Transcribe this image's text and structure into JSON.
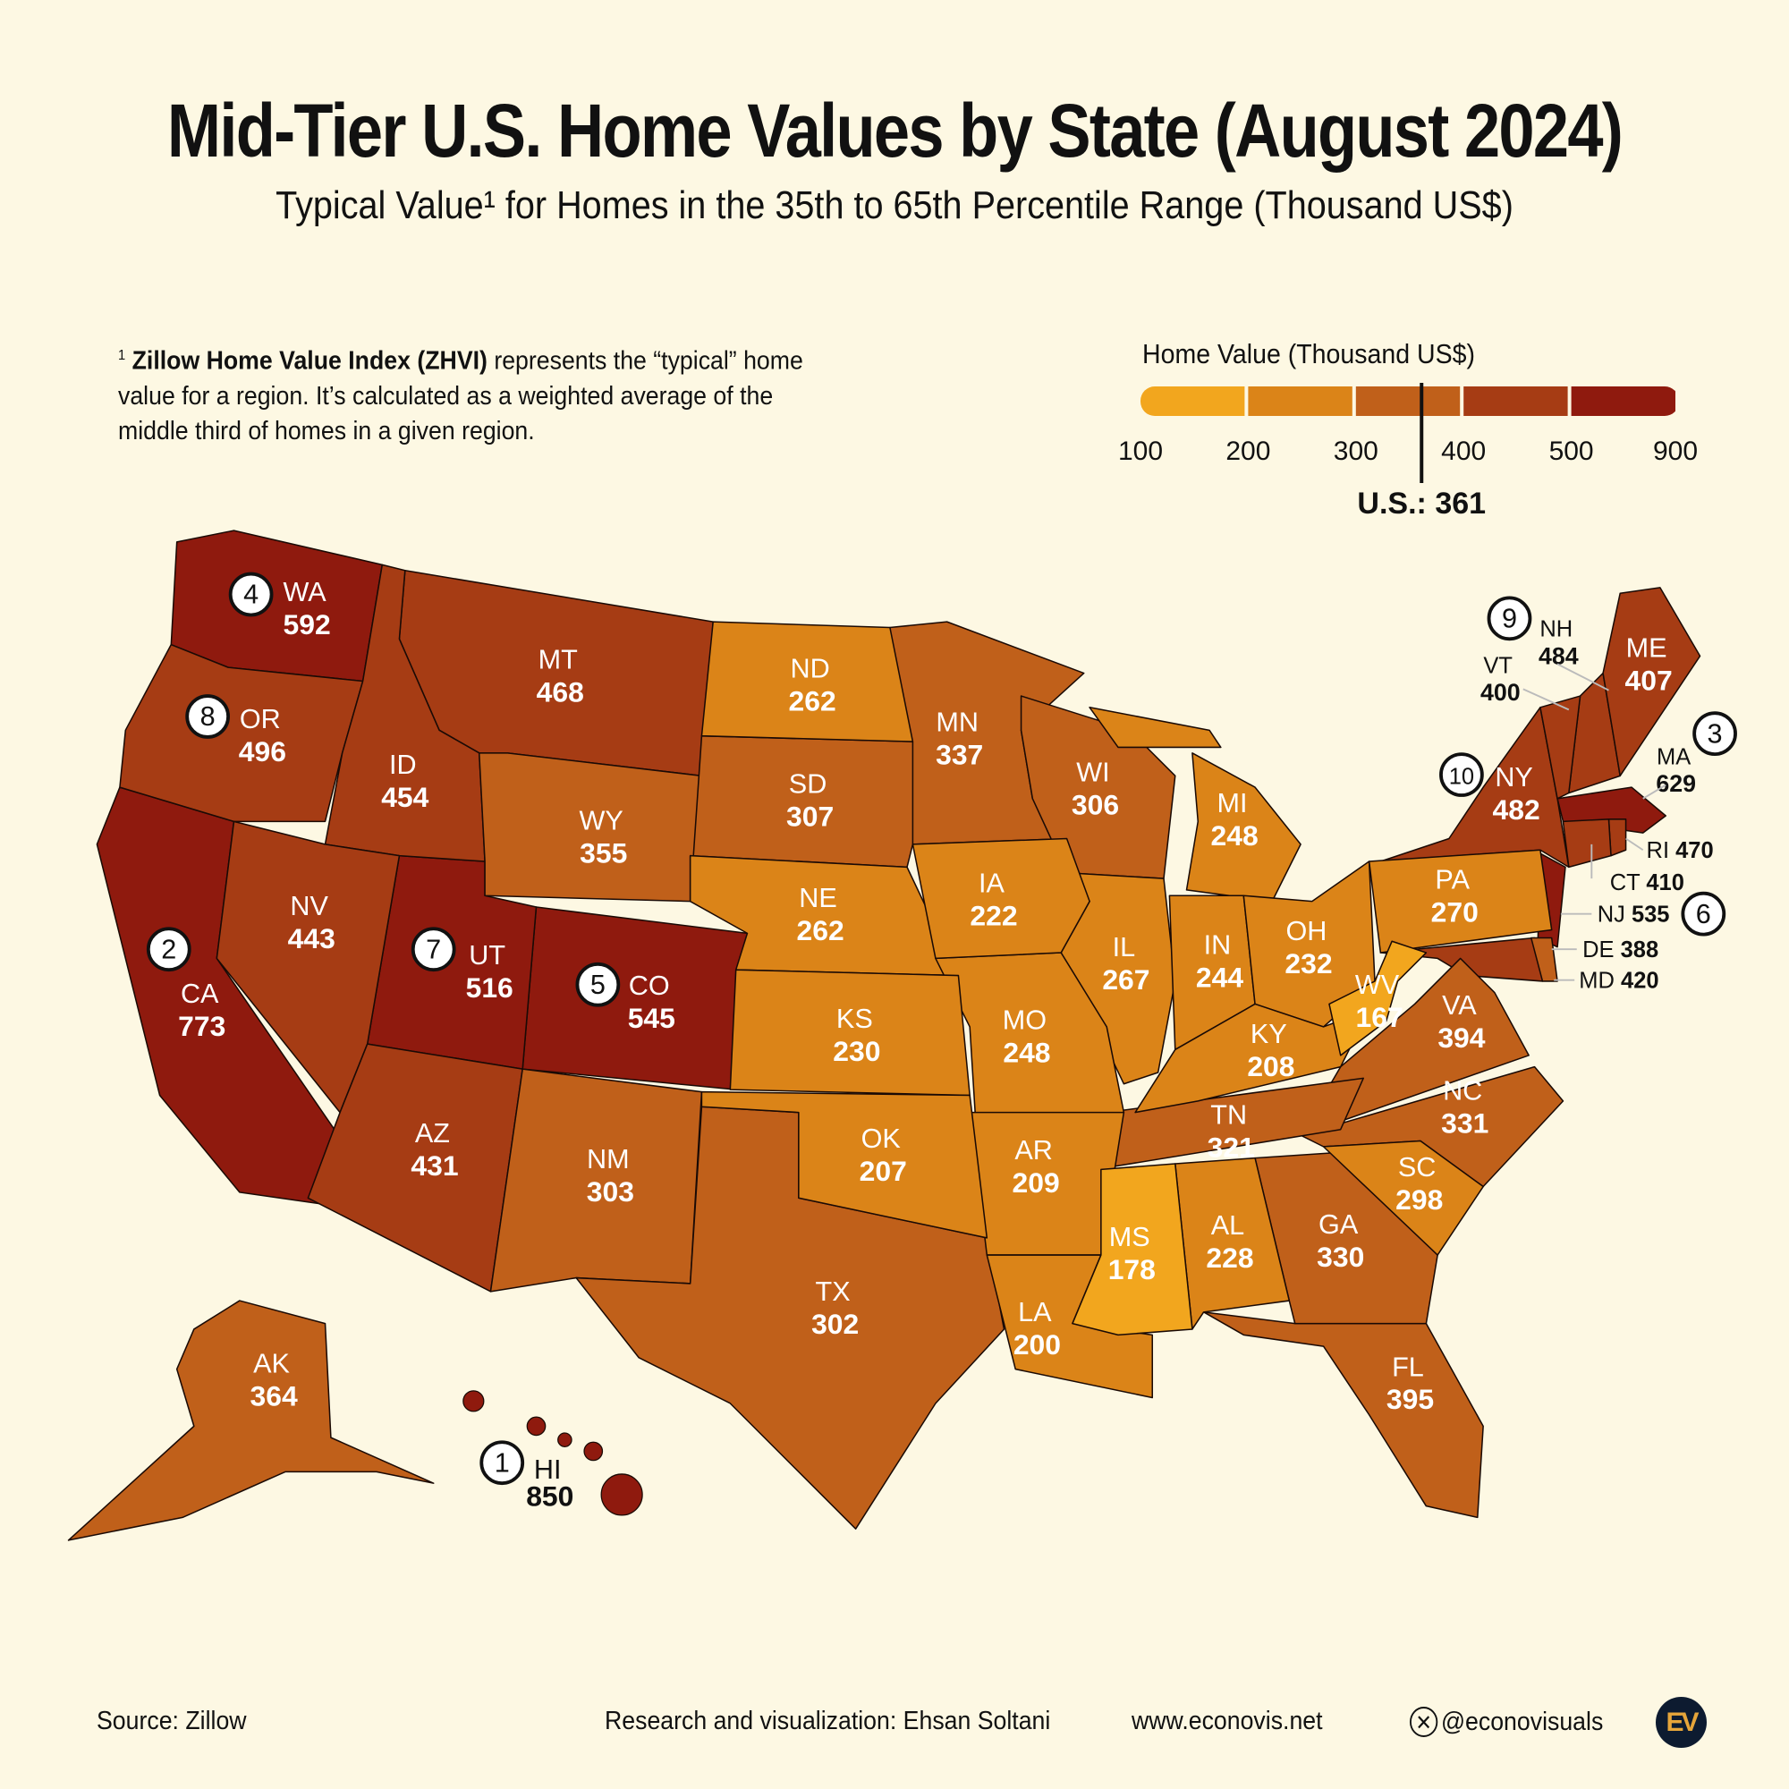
{
  "header": {
    "title": "Mid-Tier U.S. Home Values by State (August 2024)",
    "subtitle": "Typical Value¹ for Homes in the 35th to 65th Percentile Range (Thousand US$)"
  },
  "footnote": {
    "marker": "1",
    "bold": "Zillow Home Value Index (ZHVI)",
    "text": " represents the “typical” home value for a region. It’s calculated as a weighted average of the middle third of homes in a given region."
  },
  "footer": {
    "source": "Source: Zillow",
    "credit": "Research and visualization: Ehsan Soltani",
    "website": "www.econovis.net",
    "social": "@econovisuals",
    "logo": "EV"
  },
  "chart_data": {
    "type": "choropleth",
    "title": "Mid-Tier U.S. Home Values by State (August 2024)",
    "unit": "Thousand US$",
    "legend": {
      "title": "Home Value (Thousand US$)",
      "breaks": [
        100,
        200,
        300,
        400,
        500,
        900
      ],
      "tick_labels": [
        "100",
        "200",
        "300",
        "400",
        "500",
        "900"
      ],
      "colors": [
        "#f2a61e",
        "#db8418",
        "#c0601a",
        "#a63c14",
        "#8f1a0e"
      ],
      "reference": {
        "label": "U.S.: 361",
        "value": 361
      }
    },
    "states": [
      {
        "abbr": "HI",
        "value": 850,
        "rank": 1
      },
      {
        "abbr": "CA",
        "value": 773,
        "rank": 2
      },
      {
        "abbr": "MA",
        "value": 629,
        "rank": 3
      },
      {
        "abbr": "WA",
        "value": 592,
        "rank": 4
      },
      {
        "abbr": "CO",
        "value": 545,
        "rank": 5
      },
      {
        "abbr": "NJ",
        "value": 535,
        "rank": 6
      },
      {
        "abbr": "UT",
        "value": 516,
        "rank": 7
      },
      {
        "abbr": "OR",
        "value": 496,
        "rank": 8
      },
      {
        "abbr": "NH",
        "value": 484,
        "rank": 9
      },
      {
        "abbr": "NY",
        "value": 482,
        "rank": 10
      },
      {
        "abbr": "RI",
        "value": 470
      },
      {
        "abbr": "MT",
        "value": 468
      },
      {
        "abbr": "ID",
        "value": 454
      },
      {
        "abbr": "NV",
        "value": 443
      },
      {
        "abbr": "AZ",
        "value": 431
      },
      {
        "abbr": "MD",
        "value": 420
      },
      {
        "abbr": "CT",
        "value": 410
      },
      {
        "abbr": "ME",
        "value": 407
      },
      {
        "abbr": "VT",
        "value": 400
      },
      {
        "abbr": "FL",
        "value": 395
      },
      {
        "abbr": "VA",
        "value": 394
      },
      {
        "abbr": "DE",
        "value": 388
      },
      {
        "abbr": "AK",
        "value": 364
      },
      {
        "abbr": "WY",
        "value": 355
      },
      {
        "abbr": "MN",
        "value": 337
      },
      {
        "abbr": "NC",
        "value": 331
      },
      {
        "abbr": "GA",
        "value": 330
      },
      {
        "abbr": "TN",
        "value": 321
      },
      {
        "abbr": "SD",
        "value": 307
      },
      {
        "abbr": "WI",
        "value": 306
      },
      {
        "abbr": "NM",
        "value": 303
      },
      {
        "abbr": "TX",
        "value": 302
      },
      {
        "abbr": "SC",
        "value": 298
      },
      {
        "abbr": "PA",
        "value": 270
      },
      {
        "abbr": "IL",
        "value": 267
      },
      {
        "abbr": "ND",
        "value": 262
      },
      {
        "abbr": "NE",
        "value": 262
      },
      {
        "abbr": "MI",
        "value": 248
      },
      {
        "abbr": "MO",
        "value": 248
      },
      {
        "abbr": "IN",
        "value": 244
      },
      {
        "abbr": "OH",
        "value": 232
      },
      {
        "abbr": "KS",
        "value": 230
      },
      {
        "abbr": "AL",
        "value": 228
      },
      {
        "abbr": "IA",
        "value": 222
      },
      {
        "abbr": "AR",
        "value": 209
      },
      {
        "abbr": "KY",
        "value": 208
      },
      {
        "abbr": "OK",
        "value": 207
      },
      {
        "abbr": "LA",
        "value": 200
      },
      {
        "abbr": "MS",
        "value": 178
      },
      {
        "abbr": "WV",
        "value": 167
      }
    ]
  }
}
